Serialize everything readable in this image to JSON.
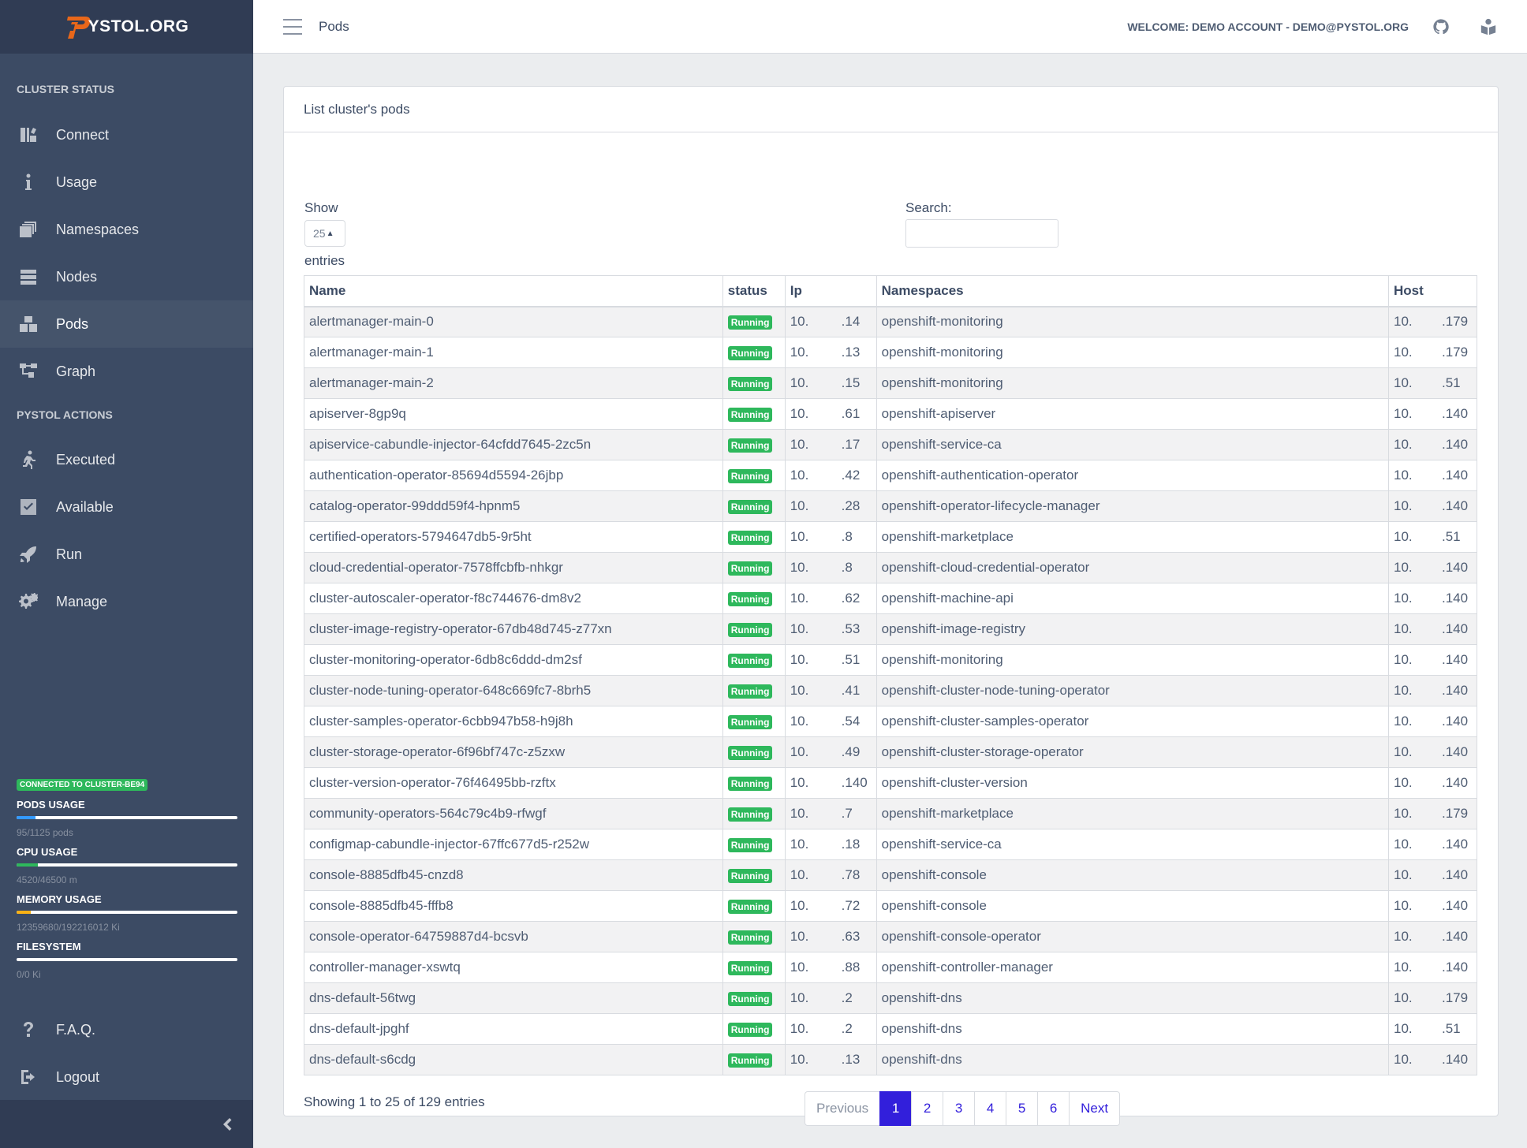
{
  "sidebar": {
    "brand": "YSTOL.ORG",
    "sections": [
      {
        "title": "CLUSTER STATUS"
      },
      {
        "title": "PYSTOL ACTIONS"
      }
    ],
    "cluster_items": [
      {
        "label": "Connect",
        "icon": "storage-icon"
      },
      {
        "label": "Usage",
        "icon": "info-icon"
      },
      {
        "label": "Namespaces",
        "icon": "layers-icon"
      },
      {
        "label": "Nodes",
        "icon": "server-icon"
      },
      {
        "label": "Pods",
        "icon": "boxes-icon",
        "active": true
      },
      {
        "label": "Graph",
        "icon": "graph-icon"
      }
    ],
    "action_items": [
      {
        "label": "Executed",
        "icon": "running-icon"
      },
      {
        "label": "Available",
        "icon": "check-square-icon"
      },
      {
        "label": "Run",
        "icon": "rocket-icon"
      },
      {
        "label": "Manage",
        "icon": "gears-icon"
      }
    ],
    "connection_badge": "CONNECTED TO CLUSTER-BE94",
    "usage": [
      {
        "title": "PODS USAGE",
        "text": "95/1125 pods",
        "fraction": 0.0844,
        "color": "#39f"
      },
      {
        "title": "CPU USAGE",
        "text": "4520/46500 m",
        "fraction": 0.0972,
        "color": "#2eb85c"
      },
      {
        "title": "MEMORY USAGE",
        "text": "12359680/192216012 Ki",
        "fraction": 0.0643,
        "color": "#f9b115"
      },
      {
        "title": "FILESYSTEM",
        "text": "0/0 Ki",
        "fraction": 0,
        "color": "#39f"
      }
    ],
    "bottom_items": [
      {
        "label": "F.A.Q.",
        "icon": "question-icon"
      },
      {
        "label": "Logout",
        "icon": "logout-icon"
      }
    ]
  },
  "header": {
    "title": "Pods",
    "welcome": "WELCOME: DEMO ACCOUNT - DEMO@PYSTOL.ORG"
  },
  "card": {
    "title": "List cluster's pods",
    "show_label": "Show",
    "length_value": "25",
    "entries_label": "entries",
    "search_label": "Search:",
    "columns": [
      "Name",
      "status",
      "Ip",
      "Namespaces",
      "Host"
    ],
    "rows": [
      {
        "name": "alertmanager-main-0",
        "status": "Running",
        "ip_a": "10.",
        "ip_b": ".14",
        "ns": "openshift-monitoring",
        "host_a": "10.",
        "host_b": ".179"
      },
      {
        "name": "alertmanager-main-1",
        "status": "Running",
        "ip_a": "10.",
        "ip_b": ".13",
        "ns": "openshift-monitoring",
        "host_a": "10.",
        "host_b": ".179"
      },
      {
        "name": "alertmanager-main-2",
        "status": "Running",
        "ip_a": "10.",
        "ip_b": ".15",
        "ns": "openshift-monitoring",
        "host_a": "10.",
        "host_b": ".51"
      },
      {
        "name": "apiserver-8gp9q",
        "status": "Running",
        "ip_a": "10.",
        "ip_b": ".61",
        "ns": "openshift-apiserver",
        "host_a": "10.",
        "host_b": ".140"
      },
      {
        "name": "apiservice-cabundle-injector-64cfdd7645-2zc5n",
        "status": "Running",
        "ip_a": "10.",
        "ip_b": ".17",
        "ns": "openshift-service-ca",
        "host_a": "10.",
        "host_b": ".140"
      },
      {
        "name": "authentication-operator-85694d5594-26jbp",
        "status": "Running",
        "ip_a": "10.",
        "ip_b": ".42",
        "ns": "openshift-authentication-operator",
        "host_a": "10.",
        "host_b": ".140"
      },
      {
        "name": "catalog-operator-99ddd59f4-hpnm5",
        "status": "Running",
        "ip_a": "10.",
        "ip_b": ".28",
        "ns": "openshift-operator-lifecycle-manager",
        "host_a": "10.",
        "host_b": ".140"
      },
      {
        "name": "certified-operators-5794647db5-9r5ht",
        "status": "Running",
        "ip_a": "10.",
        "ip_b": ".8",
        "ns": "openshift-marketplace",
        "host_a": "10.",
        "host_b": ".51"
      },
      {
        "name": "cloud-credential-operator-7578ffcbfb-nhkgr",
        "status": "Running",
        "ip_a": "10.",
        "ip_b": ".8",
        "ns": "openshift-cloud-credential-operator",
        "host_a": "10.",
        "host_b": ".140"
      },
      {
        "name": "cluster-autoscaler-operator-f8c744676-dm8v2",
        "status": "Running",
        "ip_a": "10.",
        "ip_b": ".62",
        "ns": "openshift-machine-api",
        "host_a": "10.",
        "host_b": ".140"
      },
      {
        "name": "cluster-image-registry-operator-67db48d745-z77xn",
        "status": "Running",
        "ip_a": "10.",
        "ip_b": ".53",
        "ns": "openshift-image-registry",
        "host_a": "10.",
        "host_b": ".140"
      },
      {
        "name": "cluster-monitoring-operator-6db8c6ddd-dm2sf",
        "status": "Running",
        "ip_a": "10.",
        "ip_b": ".51",
        "ns": "openshift-monitoring",
        "host_a": "10.",
        "host_b": ".140"
      },
      {
        "name": "cluster-node-tuning-operator-648c669fc7-8brh5",
        "status": "Running",
        "ip_a": "10.",
        "ip_b": ".41",
        "ns": "openshift-cluster-node-tuning-operator",
        "host_a": "10.",
        "host_b": ".140"
      },
      {
        "name": "cluster-samples-operator-6cbb947b58-h9j8h",
        "status": "Running",
        "ip_a": "10.",
        "ip_b": ".54",
        "ns": "openshift-cluster-samples-operator",
        "host_a": "10.",
        "host_b": ".140"
      },
      {
        "name": "cluster-storage-operator-6f96bf747c-z5zxw",
        "status": "Running",
        "ip_a": "10.",
        "ip_b": ".49",
        "ns": "openshift-cluster-storage-operator",
        "host_a": "10.",
        "host_b": ".140"
      },
      {
        "name": "cluster-version-operator-76f46495bb-rzftx",
        "status": "Running",
        "ip_a": "10.",
        "ip_b": ".140",
        "ns": "openshift-cluster-version",
        "host_a": "10.",
        "host_b": ".140"
      },
      {
        "name": "community-operators-564c79c4b9-rfwgf",
        "status": "Running",
        "ip_a": "10.",
        "ip_b": ".7",
        "ns": "openshift-marketplace",
        "host_a": "10.",
        "host_b": ".179"
      },
      {
        "name": "configmap-cabundle-injector-67ffc677d5-r252w",
        "status": "Running",
        "ip_a": "10.",
        "ip_b": ".18",
        "ns": "openshift-service-ca",
        "host_a": "10.",
        "host_b": ".140"
      },
      {
        "name": "console-8885dfb45-cnzd8",
        "status": "Running",
        "ip_a": "10.",
        "ip_b": ".78",
        "ns": "openshift-console",
        "host_a": "10.",
        "host_b": ".140"
      },
      {
        "name": "console-8885dfb45-fffb8",
        "status": "Running",
        "ip_a": "10.",
        "ip_b": ".72",
        "ns": "openshift-console",
        "host_a": "10.",
        "host_b": ".140"
      },
      {
        "name": "console-operator-64759887d4-bcsvb",
        "status": "Running",
        "ip_a": "10.",
        "ip_b": ".63",
        "ns": "openshift-console-operator",
        "host_a": "10.",
        "host_b": ".140"
      },
      {
        "name": "controller-manager-xswtq",
        "status": "Running",
        "ip_a": "10.",
        "ip_b": ".88",
        "ns": "openshift-controller-manager",
        "host_a": "10.",
        "host_b": ".140"
      },
      {
        "name": "dns-default-56twg",
        "status": "Running",
        "ip_a": "10.",
        "ip_b": ".2",
        "ns": "openshift-dns",
        "host_a": "10.",
        "host_b": ".179"
      },
      {
        "name": "dns-default-jpghf",
        "status": "Running",
        "ip_a": "10.",
        "ip_b": ".2",
        "ns": "openshift-dns",
        "host_a": "10.",
        "host_b": ".51"
      },
      {
        "name": "dns-default-s6cdg",
        "status": "Running",
        "ip_a": "10.",
        "ip_b": ".13",
        "ns": "openshift-dns",
        "host_a": "10.",
        "host_b": ".140"
      }
    ],
    "info": "Showing 1 to 25 of 129 entries",
    "pagination": {
      "previous": "Previous",
      "pages": [
        "1",
        "2",
        "3",
        "4",
        "5",
        "6"
      ],
      "active": "1",
      "next": "Next"
    }
  },
  "colors": {
    "sidebar_bg": "#3c4b64",
    "sidebar_dark": "#303c54",
    "primary": "#321fdb",
    "success": "#2eb85c",
    "brand_orange": "#e8671a"
  }
}
